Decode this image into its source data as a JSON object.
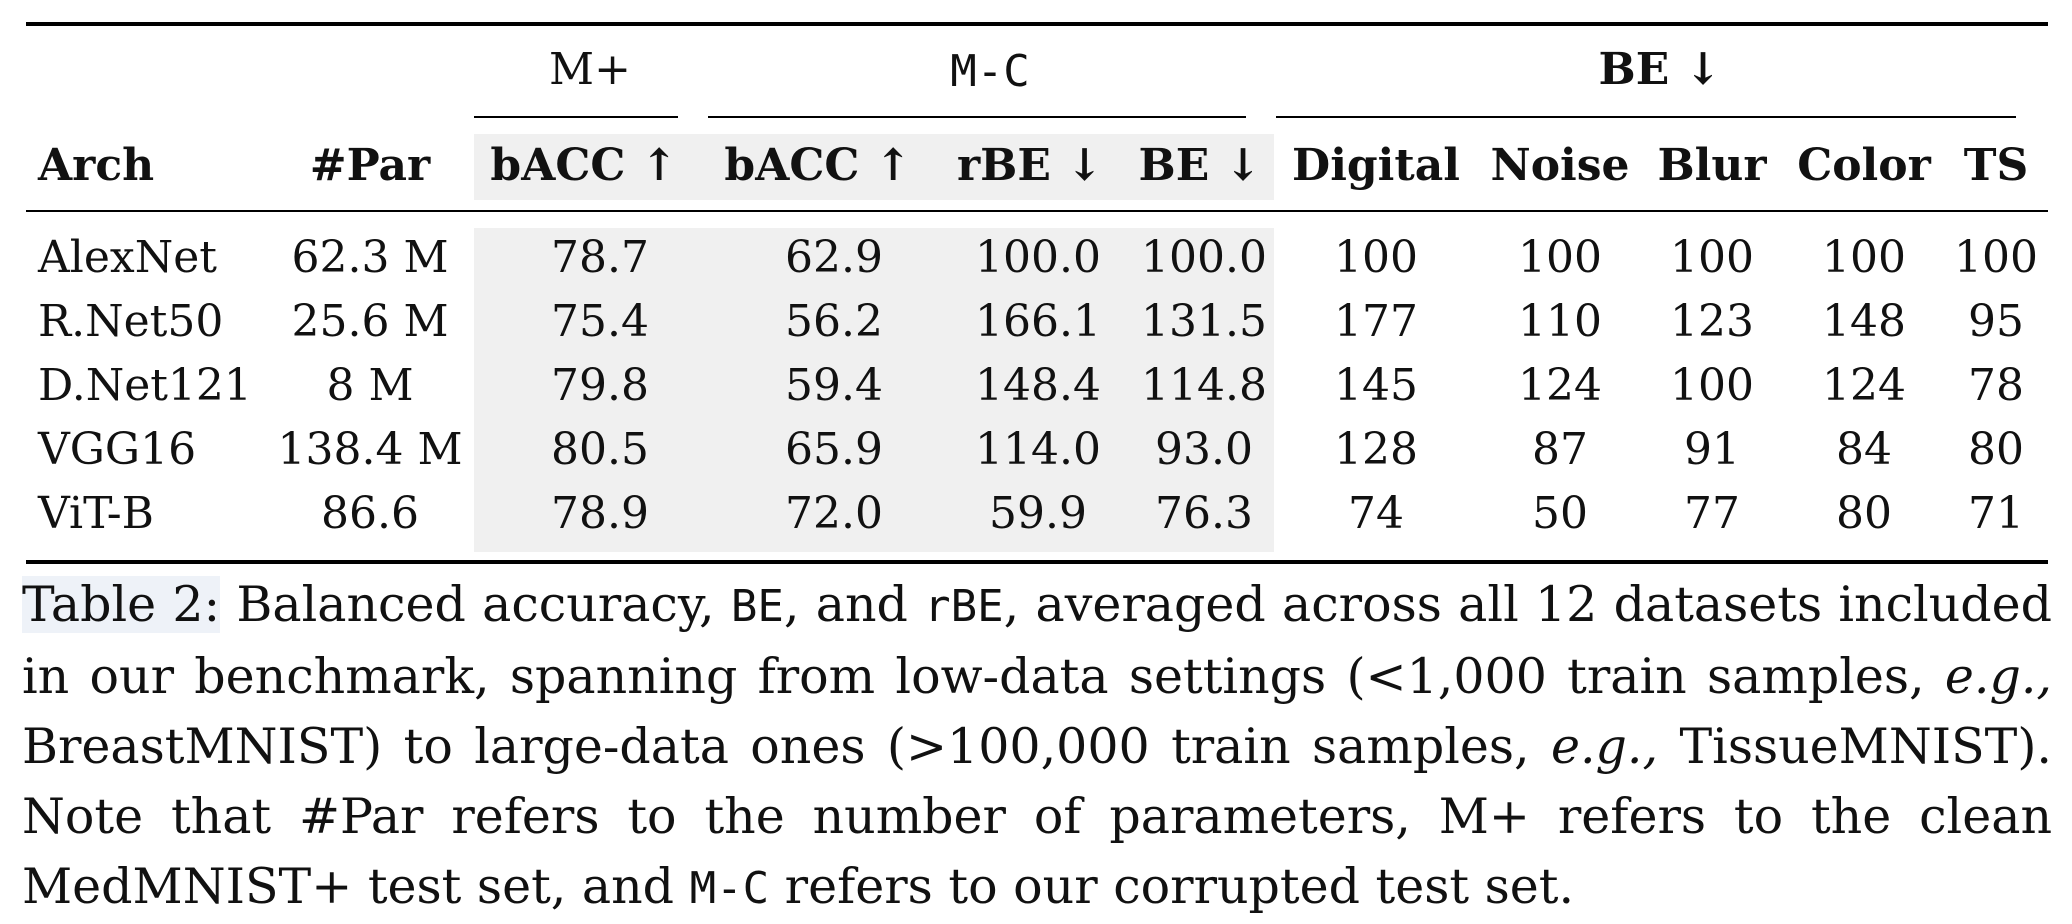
{
  "table": {
    "groups": {
      "mplus": "M+",
      "mc": "M-C",
      "be": "BE ↓"
    },
    "columns": [
      "Arch",
      "#Par",
      "bACC ↑",
      "bACC ↑",
      "rBE ↓",
      "BE ↓",
      "Digital",
      "Noise",
      "Blur",
      "Color",
      "TS"
    ],
    "rows": [
      [
        "AlexNet",
        "62.3 M",
        "78.7",
        "62.9",
        "100.0",
        "100.0",
        "100",
        "100",
        "100",
        "100",
        "100"
      ],
      [
        "R.Net50",
        "25.6 M",
        "75.4",
        "56.2",
        "166.1",
        "131.5",
        "177",
        "110",
        "123",
        "148",
        "95"
      ],
      [
        "D.Net121",
        "8 M",
        "79.8",
        "59.4",
        "148.4",
        "114.8",
        "145",
        "124",
        "100",
        "124",
        "78"
      ],
      [
        "VGG16",
        "138.4 M",
        "80.5",
        "65.9",
        "114.0",
        "93.0",
        "128",
        "87",
        "91",
        "84",
        "80"
      ],
      [
        "ViT-B",
        "86.6",
        "78.9",
        "72.0",
        "59.9",
        "76.3",
        "74",
        "50",
        "77",
        "80",
        "71"
      ]
    ]
  },
  "caption": {
    "label": "Table 2:",
    "s1": " Balanced accuracy, ",
    "c1": "BE",
    "s2": ", and ",
    "c2": "rBE",
    "s3": ", averaged across all 12 datasets included in our benchmark, spanning from low-data settings (<1,000 train samples, ",
    "eg1": "e.g.,",
    "s4": " BreastMNIST) to large-data ones (>100,000 train samples, ",
    "eg2": "e.g.,",
    "s5": " TissueMNIST). Note that #Par refers to the number of parameters, M+ refers to the clean MedMNIST+ test set, and ",
    "c3": "M-C",
    "s6": " refers to our corrupted test set."
  }
}
